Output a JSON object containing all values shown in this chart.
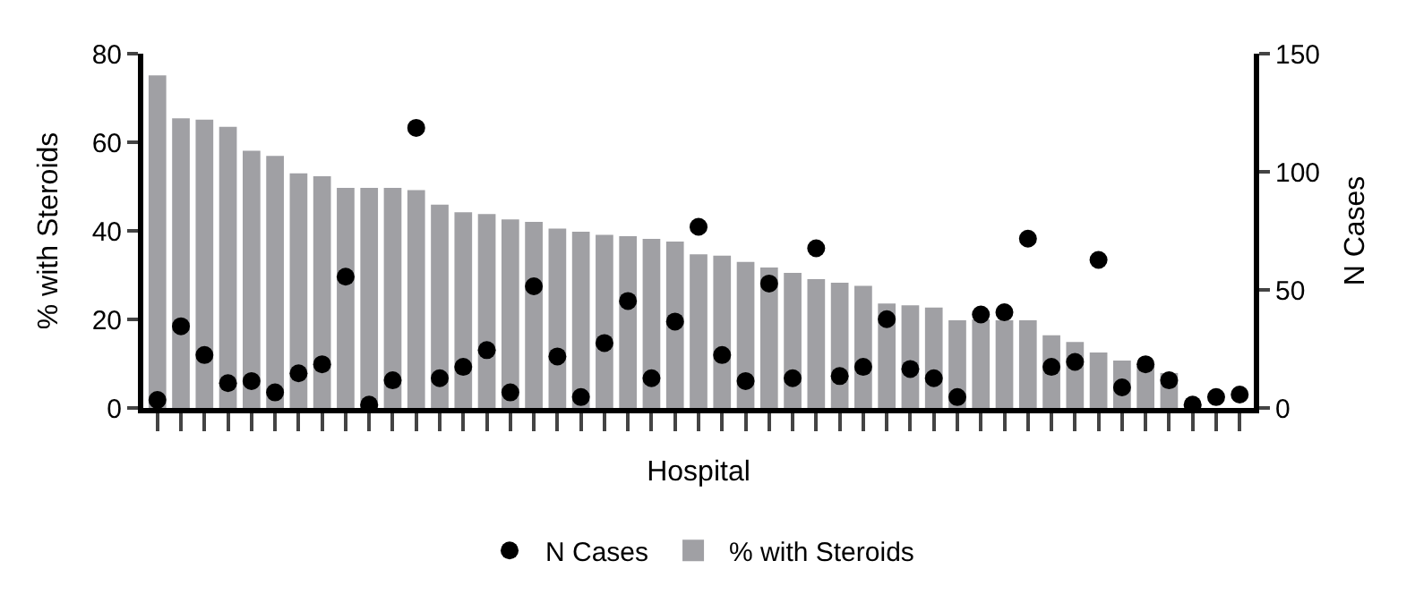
{
  "chart_data": {
    "type": "bar",
    "xlabel": "Hospital",
    "ylabel": "% with Steroids",
    "y2label": "N Cases",
    "categories": [
      null,
      null,
      null,
      null,
      null,
      null,
      null,
      null,
      null,
      null,
      null,
      null,
      null,
      null,
      null,
      null,
      null,
      null,
      null,
      null,
      null,
      null,
      null,
      null,
      null,
      null,
      null,
      null,
      null,
      null,
      null,
      null,
      null,
      null,
      null,
      null,
      null,
      null,
      null,
      null,
      null,
      null,
      null,
      null,
      null,
      null,
      null
    ],
    "series": [
      {
        "name": "N Cases",
        "type": "scatter",
        "axis": "y2",
        "color": "#000000",
        "marker": "circle",
        "values": [
          3.4,
          34.6,
          22.4,
          10.5,
          11.4,
          6.6,
          14.7,
          18.5,
          55.6,
          1.4,
          11.7,
          118.6,
          12.6,
          17.4,
          24.5,
          6.6,
          51.5,
          21.8,
          4.6,
          27.5,
          45.3,
          12.6,
          36.6,
          76.7,
          22.4,
          11.4,
          52.7,
          12.6,
          67.6,
          13.5,
          17.4,
          37.6,
          16.5,
          12.6,
          4.6,
          39.6,
          40.5,
          71.7,
          17.4,
          19.5,
          62.7,
          8.7,
          18.5,
          11.7,
          1.4,
          4.6,
          5.7
        ]
      },
      {
        "name": "% with Steroids",
        "color": "#a0a0a4",
        "values": [
          75.1,
          65.4,
          65.1,
          63.5,
          58.1,
          56.9,
          53,
          52.3,
          49.7,
          49.7,
          49.7,
          49.2,
          45.9,
          44.2,
          43.8,
          42.6,
          42,
          40.5,
          39.8,
          39.1,
          38.8,
          38.2,
          37.6,
          34.7,
          34.4,
          33,
          31.7,
          30.5,
          29.1,
          28.3,
          27.6,
          23.6,
          23.2,
          22.7,
          19.8,
          20,
          19.8,
          19.8,
          16.4,
          14.9,
          12.5,
          10.7,
          9.5,
          7.9,
          0,
          0,
          0
        ]
      }
    ],
    "ylim": [
      0,
      80
    ],
    "yticks": [
      0,
      20,
      40,
      60,
      80
    ],
    "y2lim": [
      0,
      150
    ],
    "y2ticks": [
      0,
      50,
      100,
      150
    ],
    "legend": "bottom"
  }
}
